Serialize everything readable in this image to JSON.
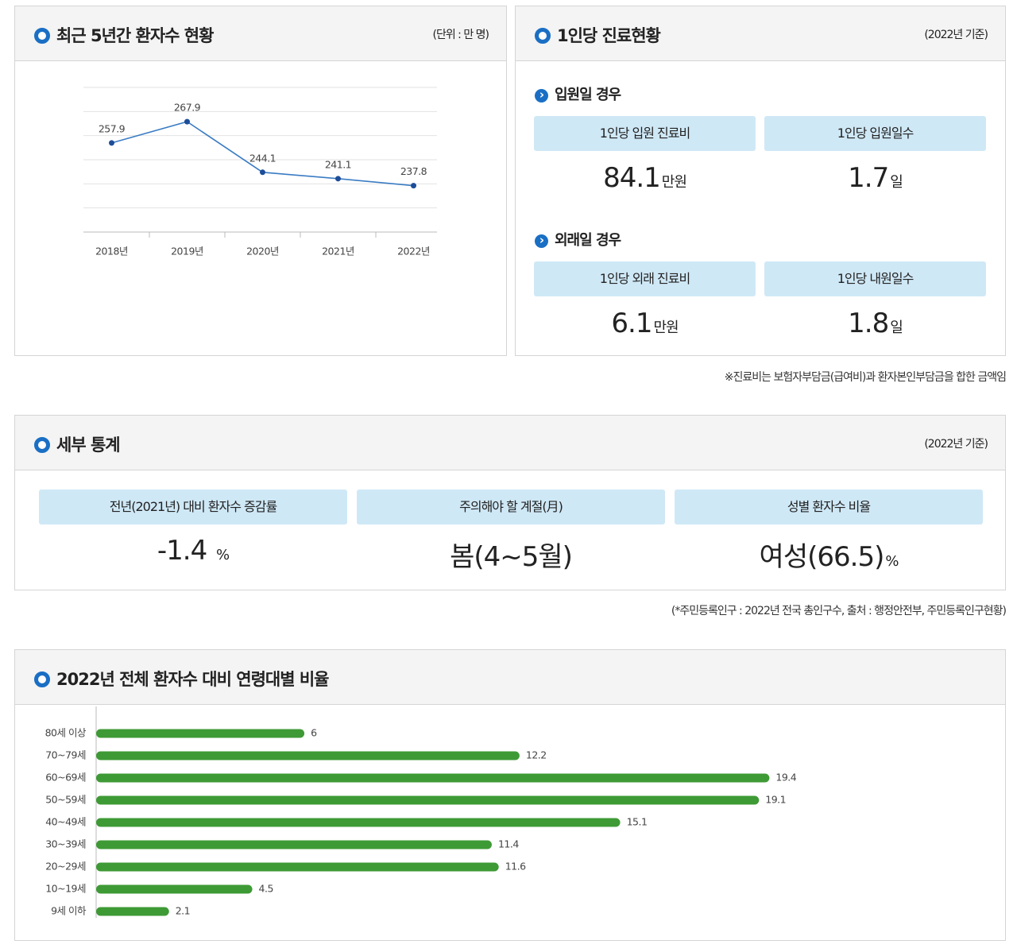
{
  "chart_data": [
    {
      "type": "line",
      "title": "최근 5년간 환자수 현황",
      "subtitle": "(단위 : 만 명)",
      "categories": [
        "2018년",
        "2019년",
        "2020년",
        "2021년",
        "2022년"
      ],
      "values": [
        257.9,
        267.9,
        244.1,
        241.1,
        237.8
      ],
      "color": "#3a7cc3",
      "ylim": [
        216,
        284
      ],
      "grid": true
    },
    {
      "type": "bar",
      "orientation": "horizontal",
      "title": "2022년 전체 환자수 대비 연령대별 비율",
      "categories": [
        "80세 이상",
        "70~79세",
        "60~69세",
        "50~59세",
        "40~49세",
        "30~39세",
        "20~29세",
        "10~19세",
        "9세 이하"
      ],
      "values": [
        6,
        12.2,
        19.4,
        19.1,
        15.1,
        11.4,
        11.6,
        4.5,
        2.1
      ],
      "color": "#3e9a35",
      "xlim": [
        0,
        25
      ]
    }
  ],
  "care": {
    "title": "1인당 진료현황",
    "basis": "(2022년 기준)",
    "groups": [
      {
        "heading": "입원일 경우",
        "items": [
          {
            "label": "1인당 입원 진료비",
            "value": 84.1,
            "unit": "만원"
          },
          {
            "label": "1인당 입원일수",
            "value": 1.7,
            "unit": "일"
          }
        ]
      },
      {
        "heading": "외래일 경우",
        "items": [
          {
            "label": "1인당 외래 진료비",
            "value": 6.1,
            "unit": "만원"
          },
          {
            "label": "1인당 내원일수",
            "value": 1.8,
            "unit": "일"
          }
        ]
      }
    ],
    "note": "※진료비는 보험자부담금(급여비)과 환자본인부담금을 합한 금액임"
  },
  "details": {
    "title": "세부 통계",
    "basis": "(2022년 기준)",
    "items": [
      {
        "label": "전년(2021년) 대비 환자수 증감률",
        "value": -1.4,
        "unit": "%"
      },
      {
        "label": "주의해야 할 계절(月)",
        "value": "봄(4~5월)"
      },
      {
        "label": "성별 환자수 비율",
        "value": "여성(66.5)",
        "unit": "%"
      }
    ],
    "note": "(*주민등록인구 : 2022년 전국 총인구수, 출처 : 행정안전부, 주민등록인구현황)"
  }
}
